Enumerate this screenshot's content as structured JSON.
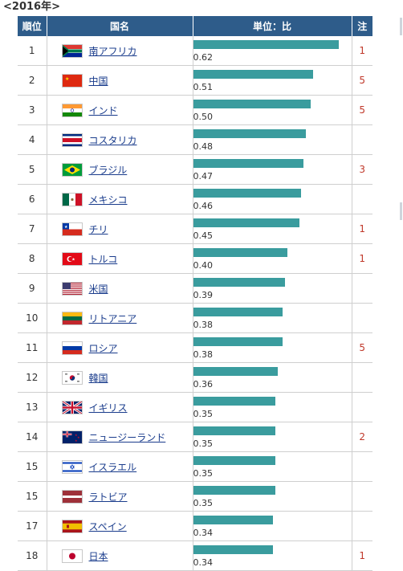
{
  "title": "<2016年>",
  "table": {
    "headers": {
      "rank": "順位",
      "country": "国名",
      "unit": "単位：比",
      "note": "注"
    },
    "max_value": 0.65,
    "rows": [
      {
        "rank": "1",
        "country": "南アフリカ",
        "value": 0.62,
        "value_label": "0.62",
        "note": "1",
        "flag": "south-africa-flag-icon"
      },
      {
        "rank": "2",
        "country": "中国",
        "value": 0.51,
        "value_label": "0.51",
        "note": "5",
        "flag": "china-flag-icon"
      },
      {
        "rank": "3",
        "country": "インド",
        "value": 0.5,
        "value_label": "0.50",
        "note": "5",
        "flag": "india-flag-icon"
      },
      {
        "rank": "4",
        "country": "コスタリカ",
        "value": 0.48,
        "value_label": "0.48",
        "note": "",
        "flag": "costa-rica-flag-icon"
      },
      {
        "rank": "5",
        "country": "ブラジル",
        "value": 0.47,
        "value_label": "0.47",
        "note": "3",
        "flag": "brazil-flag-icon"
      },
      {
        "rank": "6",
        "country": "メキシコ",
        "value": 0.46,
        "value_label": "0.46",
        "note": "",
        "flag": "mexico-flag-icon"
      },
      {
        "rank": "7",
        "country": "チリ",
        "value": 0.45,
        "value_label": "0.45",
        "note": "1",
        "flag": "chile-flag-icon"
      },
      {
        "rank": "8",
        "country": "トルコ",
        "value": 0.4,
        "value_label": "0.40",
        "note": "1",
        "flag": "turkey-flag-icon"
      },
      {
        "rank": "9",
        "country": "米国",
        "value": 0.39,
        "value_label": "0.39",
        "note": "",
        "flag": "usa-flag-icon"
      },
      {
        "rank": "10",
        "country": "リトアニア",
        "value": 0.38,
        "value_label": "0.38",
        "note": "",
        "flag": "lithuania-flag-icon"
      },
      {
        "rank": "11",
        "country": "ロシア",
        "value": 0.38,
        "value_label": "0.38",
        "note": "5",
        "flag": "russia-flag-icon"
      },
      {
        "rank": "12",
        "country": "韓国",
        "value": 0.36,
        "value_label": "0.36",
        "note": "",
        "flag": "south-korea-flag-icon"
      },
      {
        "rank": "13",
        "country": "イギリス",
        "value": 0.35,
        "value_label": "0.35",
        "note": "",
        "flag": "uk-flag-icon"
      },
      {
        "rank": "14",
        "country": "ニュージーランド",
        "value": 0.35,
        "value_label": "0.35",
        "note": "2",
        "flag": "new-zealand-flag-icon"
      },
      {
        "rank": "15",
        "country": "イスラエル",
        "value": 0.35,
        "value_label": "0.35",
        "note": "",
        "flag": "israel-flag-icon"
      },
      {
        "rank": "15",
        "country": "ラトビア",
        "value": 0.35,
        "value_label": "0.35",
        "note": "",
        "flag": "latvia-flag-icon"
      },
      {
        "rank": "17",
        "country": "スペイン",
        "value": 0.34,
        "value_label": "0.34",
        "note": "",
        "flag": "spain-flag-icon"
      },
      {
        "rank": "18",
        "country": "日本",
        "value": 0.34,
        "value_label": "0.34",
        "note": "1",
        "flag": "japan-flag-icon"
      }
    ]
  },
  "colors": {
    "header_bg": "#2e5c8a",
    "bar": "#3a9c9e",
    "note": "#c0392b",
    "link": "#1a3c8c"
  }
}
